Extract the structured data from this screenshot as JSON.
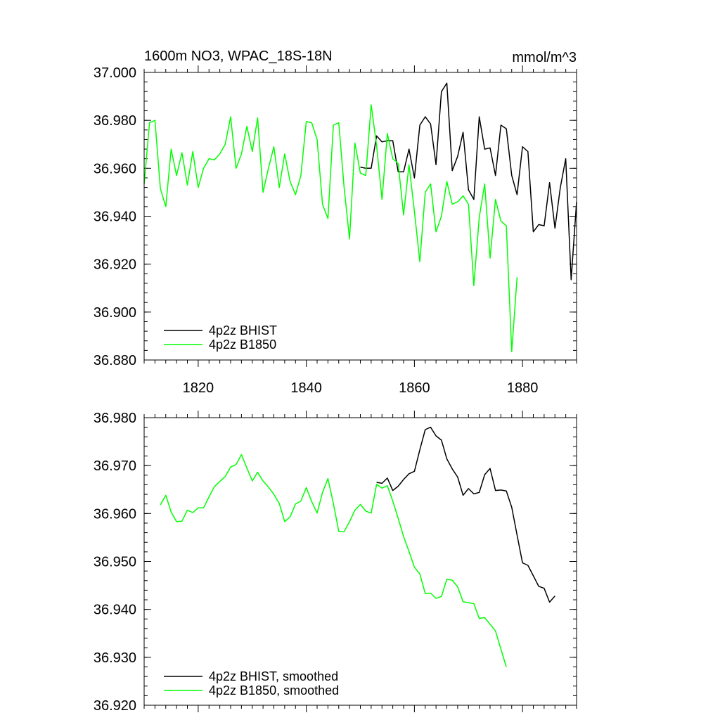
{
  "chart_data": [
    {
      "type": "line",
      "title": "1600m NO3, WPAC_18S-18N",
      "units": "mmol/m^3",
      "xlim": [
        1810,
        1890
      ],
      "ylim": [
        36.88,
        37.0
      ],
      "xticks": [
        1820,
        1840,
        1860,
        1880
      ],
      "xtick_labels": [
        "1820",
        "1840",
        "1860",
        "1880"
      ],
      "yticks": [
        36.88,
        36.9,
        36.92,
        36.94,
        36.96,
        36.98,
        37.0
      ],
      "ytick_labels": [
        "36.880",
        "36.900",
        "36.920",
        "36.940",
        "36.960",
        "36.980",
        "37.000"
      ],
      "legend_position": "bottom-left",
      "series": [
        {
          "name": "4p2z BHIST",
          "color": "#000000",
          "x0": 1850,
          "values": [
            36.9605,
            36.96,
            36.96,
            36.9735,
            36.971,
            36.9715,
            36.9715,
            36.9585,
            36.9585,
            36.968,
            36.956,
            36.978,
            36.9815,
            36.9785,
            36.9615,
            36.992,
            36.9955,
            36.959,
            36.965,
            36.975,
            36.951,
            36.947,
            36.9815,
            36.968,
            36.9685,
            36.957,
            36.978,
            36.9765,
            36.957,
            36.949,
            36.969,
            36.967,
            36.9335,
            36.9365,
            36.936,
            36.954,
            36.935,
            36.952,
            36.964,
            36.9135,
            36.946
          ]
        },
        {
          "name": "4p2z B1850",
          "color": "#00ff00",
          "x0": 1810,
          "values": [
            36.9535,
            36.979,
            36.98,
            36.9515,
            36.944,
            36.968,
            36.957,
            36.9665,
            36.953,
            36.967,
            36.952,
            36.96,
            36.964,
            36.9635,
            36.966,
            36.97,
            36.9815,
            36.96,
            36.966,
            36.9775,
            36.967,
            36.981,
            36.95,
            36.96,
            36.969,
            36.952,
            36.966,
            36.9545,
            36.949,
            36.957,
            36.9795,
            36.979,
            36.972,
            36.945,
            36.939,
            36.978,
            36.979,
            36.952,
            36.9305,
            36.9705,
            36.958,
            36.957,
            36.9865,
            36.9695,
            36.947,
            36.9745,
            36.964,
            36.962,
            36.9405,
            36.9615,
            36.942,
            36.921,
            36.95,
            36.9535,
            36.9335,
            36.94,
            36.9545,
            36.945,
            36.946,
            36.9485,
            36.945,
            36.911,
            36.9395,
            36.9535,
            36.9225,
            36.947,
            36.938,
            36.936,
            36.8835,
            36.9145
          ]
        }
      ]
    },
    {
      "type": "line",
      "xlim": [
        1810,
        1890
      ],
      "ylim": [
        36.92,
        36.98
      ],
      "xticks": [
        1820,
        1840,
        1860,
        1880
      ],
      "yticks": [
        36.92,
        36.93,
        36.94,
        36.95,
        36.96,
        36.97,
        36.98
      ],
      "ytick_labels": [
        "36.920",
        "36.930",
        "36.940",
        "36.950",
        "36.960",
        "36.970",
        "36.980"
      ],
      "legend_position": "bottom-left",
      "series": [
        {
          "name": "4p2z BHIST, smoothed",
          "color": "#000000",
          "x0": 1853,
          "values": [
            36.9665,
            36.9663,
            36.9674,
            36.9648,
            36.9657,
            36.9671,
            36.9683,
            36.9688,
            36.9733,
            36.9775,
            36.978,
            36.9762,
            36.9753,
            36.9714,
            36.9693,
            36.9676,
            36.9638,
            36.9652,
            36.9641,
            36.9644,
            36.9681,
            36.9694,
            36.9648,
            36.9649,
            36.9647,
            36.9613,
            36.9555,
            36.9497,
            36.9492,
            36.947,
            36.9448,
            36.9444,
            36.9415,
            36.9428
          ]
        },
        {
          "name": "4p2z B1850, smoothed",
          "color": "#00ff00",
          "x0": 1813,
          "values": [
            36.9618,
            36.9638,
            36.9603,
            36.9583,
            36.9584,
            36.9607,
            36.9602,
            36.9612,
            36.9612,
            36.9635,
            36.9656,
            36.9667,
            36.9677,
            36.9697,
            36.9702,
            36.9723,
            36.9695,
            36.9668,
            36.9686,
            36.9668,
            36.9655,
            36.964,
            36.9621,
            36.9583,
            36.9593,
            36.962,
            36.9626,
            36.9654,
            36.9625,
            36.9601,
            36.9644,
            36.9673,
            36.9621,
            36.9563,
            36.9562,
            36.9583,
            36.9607,
            36.9619,
            36.9605,
            36.9601,
            36.9661,
            36.9653,
            36.9658,
            36.9626,
            36.959,
            36.9552,
            36.9521,
            36.9488,
            36.9474,
            36.9433,
            36.9434,
            36.9423,
            36.9427,
            36.9463,
            36.9461,
            36.9447,
            36.9416,
            36.9414,
            36.9412,
            36.9381,
            36.9383,
            36.9369,
            36.9355,
            36.9317,
            36.928
          ]
        }
      ]
    }
  ]
}
